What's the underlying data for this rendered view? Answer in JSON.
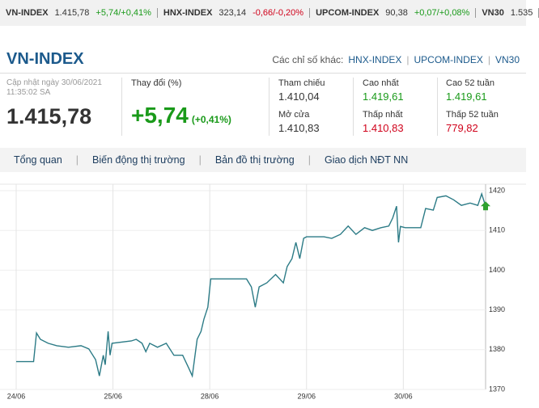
{
  "ticker": [
    {
      "name": "VN-INDEX",
      "value": "1.415,78",
      "change": "+5,74/+0,41%",
      "tone": "up"
    },
    {
      "name": "HNX-INDEX",
      "value": "323,14",
      "change": "-0,66/-0,20%",
      "tone": "down"
    },
    {
      "name": "UPCOM-INDEX",
      "value": "90,38",
      "change": "+0,07/+0,08%",
      "tone": "up"
    },
    {
      "name": "VN30",
      "value": "1.535"
    }
  ],
  "header": {
    "title": "VN-INDEX",
    "other_label": "Các chỉ số khác:",
    "other_links": [
      "HNX-INDEX",
      "UPCOM-INDEX",
      "VN30"
    ]
  },
  "summary": {
    "updated": "Cập nhật ngày 30/06/2021",
    "time": "11:35:02 SA",
    "price": "1.415,78",
    "change_label": "Thay đổi (%)",
    "change": "+5,74",
    "change_pct": "(+0,41%)"
  },
  "stats": [
    {
      "label": "Tham chiếu",
      "value": "1.410,04",
      "tone": "neutral"
    },
    {
      "label": "Cao nhất",
      "value": "1.419,61",
      "tone": "up"
    },
    {
      "label": "Cao 52 tuần",
      "value": "1.419,61",
      "tone": "up"
    },
    {
      "label": "Mở cửa",
      "value": "1.410,83",
      "tone": "neutral"
    },
    {
      "label": "Thấp nhất",
      "value": "1.410,83",
      "tone": "down"
    },
    {
      "label": "Thấp 52 tuần",
      "value": "779,82",
      "tone": "down"
    }
  ],
  "tabs": [
    "Tổng quan",
    "Biến động thị trường",
    "Bản đồ thị trường",
    "Giao dịch NĐT NN"
  ],
  "chart_data": {
    "type": "line",
    "x": [
      0,
      0.18,
      0.21,
      0.25,
      0.33,
      0.42,
      0.54,
      0.67,
      0.75,
      0.82,
      0.86,
      0.9,
      0.92,
      0.95,
      0.97,
      0.99,
      1.19,
      1.24,
      1.3,
      1.34,
      1.38,
      1.46,
      1.55,
      1.63,
      1.72,
      1.78,
      1.82,
      1.87,
      1.91,
      1.94,
      1.98,
      2.01,
      2.38,
      2.43,
      2.47,
      2.51,
      2.59,
      2.68,
      2.76,
      2.8,
      2.85,
      2.89,
      2.93,
      2.97,
      3.0,
      3.18,
      3.26,
      3.35,
      3.43,
      3.51,
      3.6,
      3.68,
      3.77,
      3.85,
      3.89,
      3.93,
      3.95,
      3.97,
      4.02,
      4.18,
      4.23,
      4.31,
      4.35,
      4.44,
      4.52,
      4.6,
      4.69,
      4.77,
      4.81,
      4.85
    ],
    "series": [
      {
        "color": "#2c7b86",
        "values": [
          1377,
          1377,
          1384.2,
          1382.6,
          1381.6,
          1381,
          1380.6,
          1381,
          1380.2,
          1377.5,
          1373.4,
          1378.6,
          1376.2,
          1384.6,
          1378.6,
          1381.6,
          1382.2,
          1382.6,
          1381.6,
          1379.5,
          1381.6,
          1380.6,
          1381.6,
          1378.6,
          1378.6,
          1375.5,
          1373.4,
          1382.6,
          1384.6,
          1387.7,
          1390.7,
          1397.8,
          1397.8,
          1395.8,
          1390.7,
          1395.8,
          1396.8,
          1398.9,
          1396.8,
          1400.9,
          1402.9,
          1407,
          1402.9,
          1408,
          1408.4,
          1408.4,
          1408,
          1409,
          1411.1,
          1409,
          1410.7,
          1410,
          1410.7,
          1411.1,
          1413.1,
          1416.1,
          1407,
          1411,
          1410.7,
          1410.7,
          1415.5,
          1415.1,
          1418.3,
          1418.7,
          1417.7,
          1416.3,
          1416.9,
          1416.3,
          1419.2,
          1416.1
        ]
      }
    ],
    "xlim": [
      0,
      4.85
    ],
    "xticks": [
      {
        "value": 0,
        "label": "24/06"
      },
      {
        "value": 1,
        "label": "25/06"
      },
      {
        "value": 2,
        "label": "28/06"
      },
      {
        "value": 3,
        "label": "29/06"
      },
      {
        "value": 4,
        "label": "30/06"
      }
    ],
    "ylim": [
      1370,
      1420
    ],
    "yticks": [
      1370,
      1380,
      1390,
      1400,
      1410,
      1420
    ],
    "grid": true
  }
}
